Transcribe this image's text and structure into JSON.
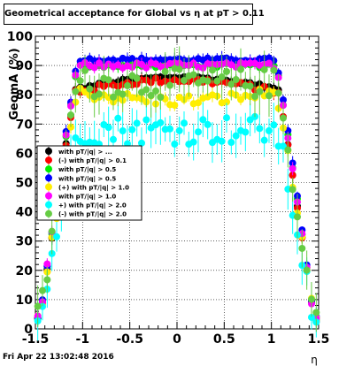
{
  "title": "Geometrical acceptance for Global vs   η at pT > 0.11",
  "footer": "Fri Apr 22 13:02:48 2016",
  "chart_data": {
    "type": "scatter",
    "title": "Geometrical acceptance for Global vs   η at pT > 0.11",
    "xlabel": "η",
    "ylabel": "GeomA (%)",
    "xlim": [
      -1.5,
      1.5
    ],
    "ylim": [
      0,
      100
    ],
    "xticks": [
      "-1.5",
      "-1",
      "-0.5",
      "0",
      "0.5",
      "1",
      "1.5"
    ],
    "yticks": [
      "0",
      "10",
      "20",
      "30",
      "40",
      "50",
      "60",
      "70",
      "80",
      "90",
      "100"
    ],
    "grid": true,
    "legend_position": "left-middle",
    "series": [
      {
        "name": "with pT/|q| > ...",
        "color": "#000000",
        "plateau": 86,
        "noise": 0.5
      },
      {
        "name": "(-) with pT/|q| > 0.1",
        "color": "#ff0000",
        "plateau": 85,
        "noise": 1.0
      },
      {
        "name": "with pT/|q| > 0.5",
        "color": "#00ee00",
        "plateau": 90,
        "noise": 0.7
      },
      {
        "name": "with pT/|q| > 0.5",
        "color": "#0000ff",
        "plateau": 92,
        "noise": 0.6
      },
      {
        "name": "(+) with pT/|q| > 1.0",
        "color": "#ffee00",
        "plateau": 81,
        "noise": 2.0
      },
      {
        "name": "with pT/|q| > 1.0",
        "color": "#ff00ff",
        "plateau": 90,
        "noise": 1.0
      },
      {
        "name": "+) with pT/|q| > 2.0",
        "color": "#00ffff",
        "plateau": 68,
        "noise": 5.0
      },
      {
        "name": "(-) with pT/|q| > 2.0",
        "color": "#66cc44",
        "plateau": 84,
        "noise": 5.0
      }
    ]
  }
}
